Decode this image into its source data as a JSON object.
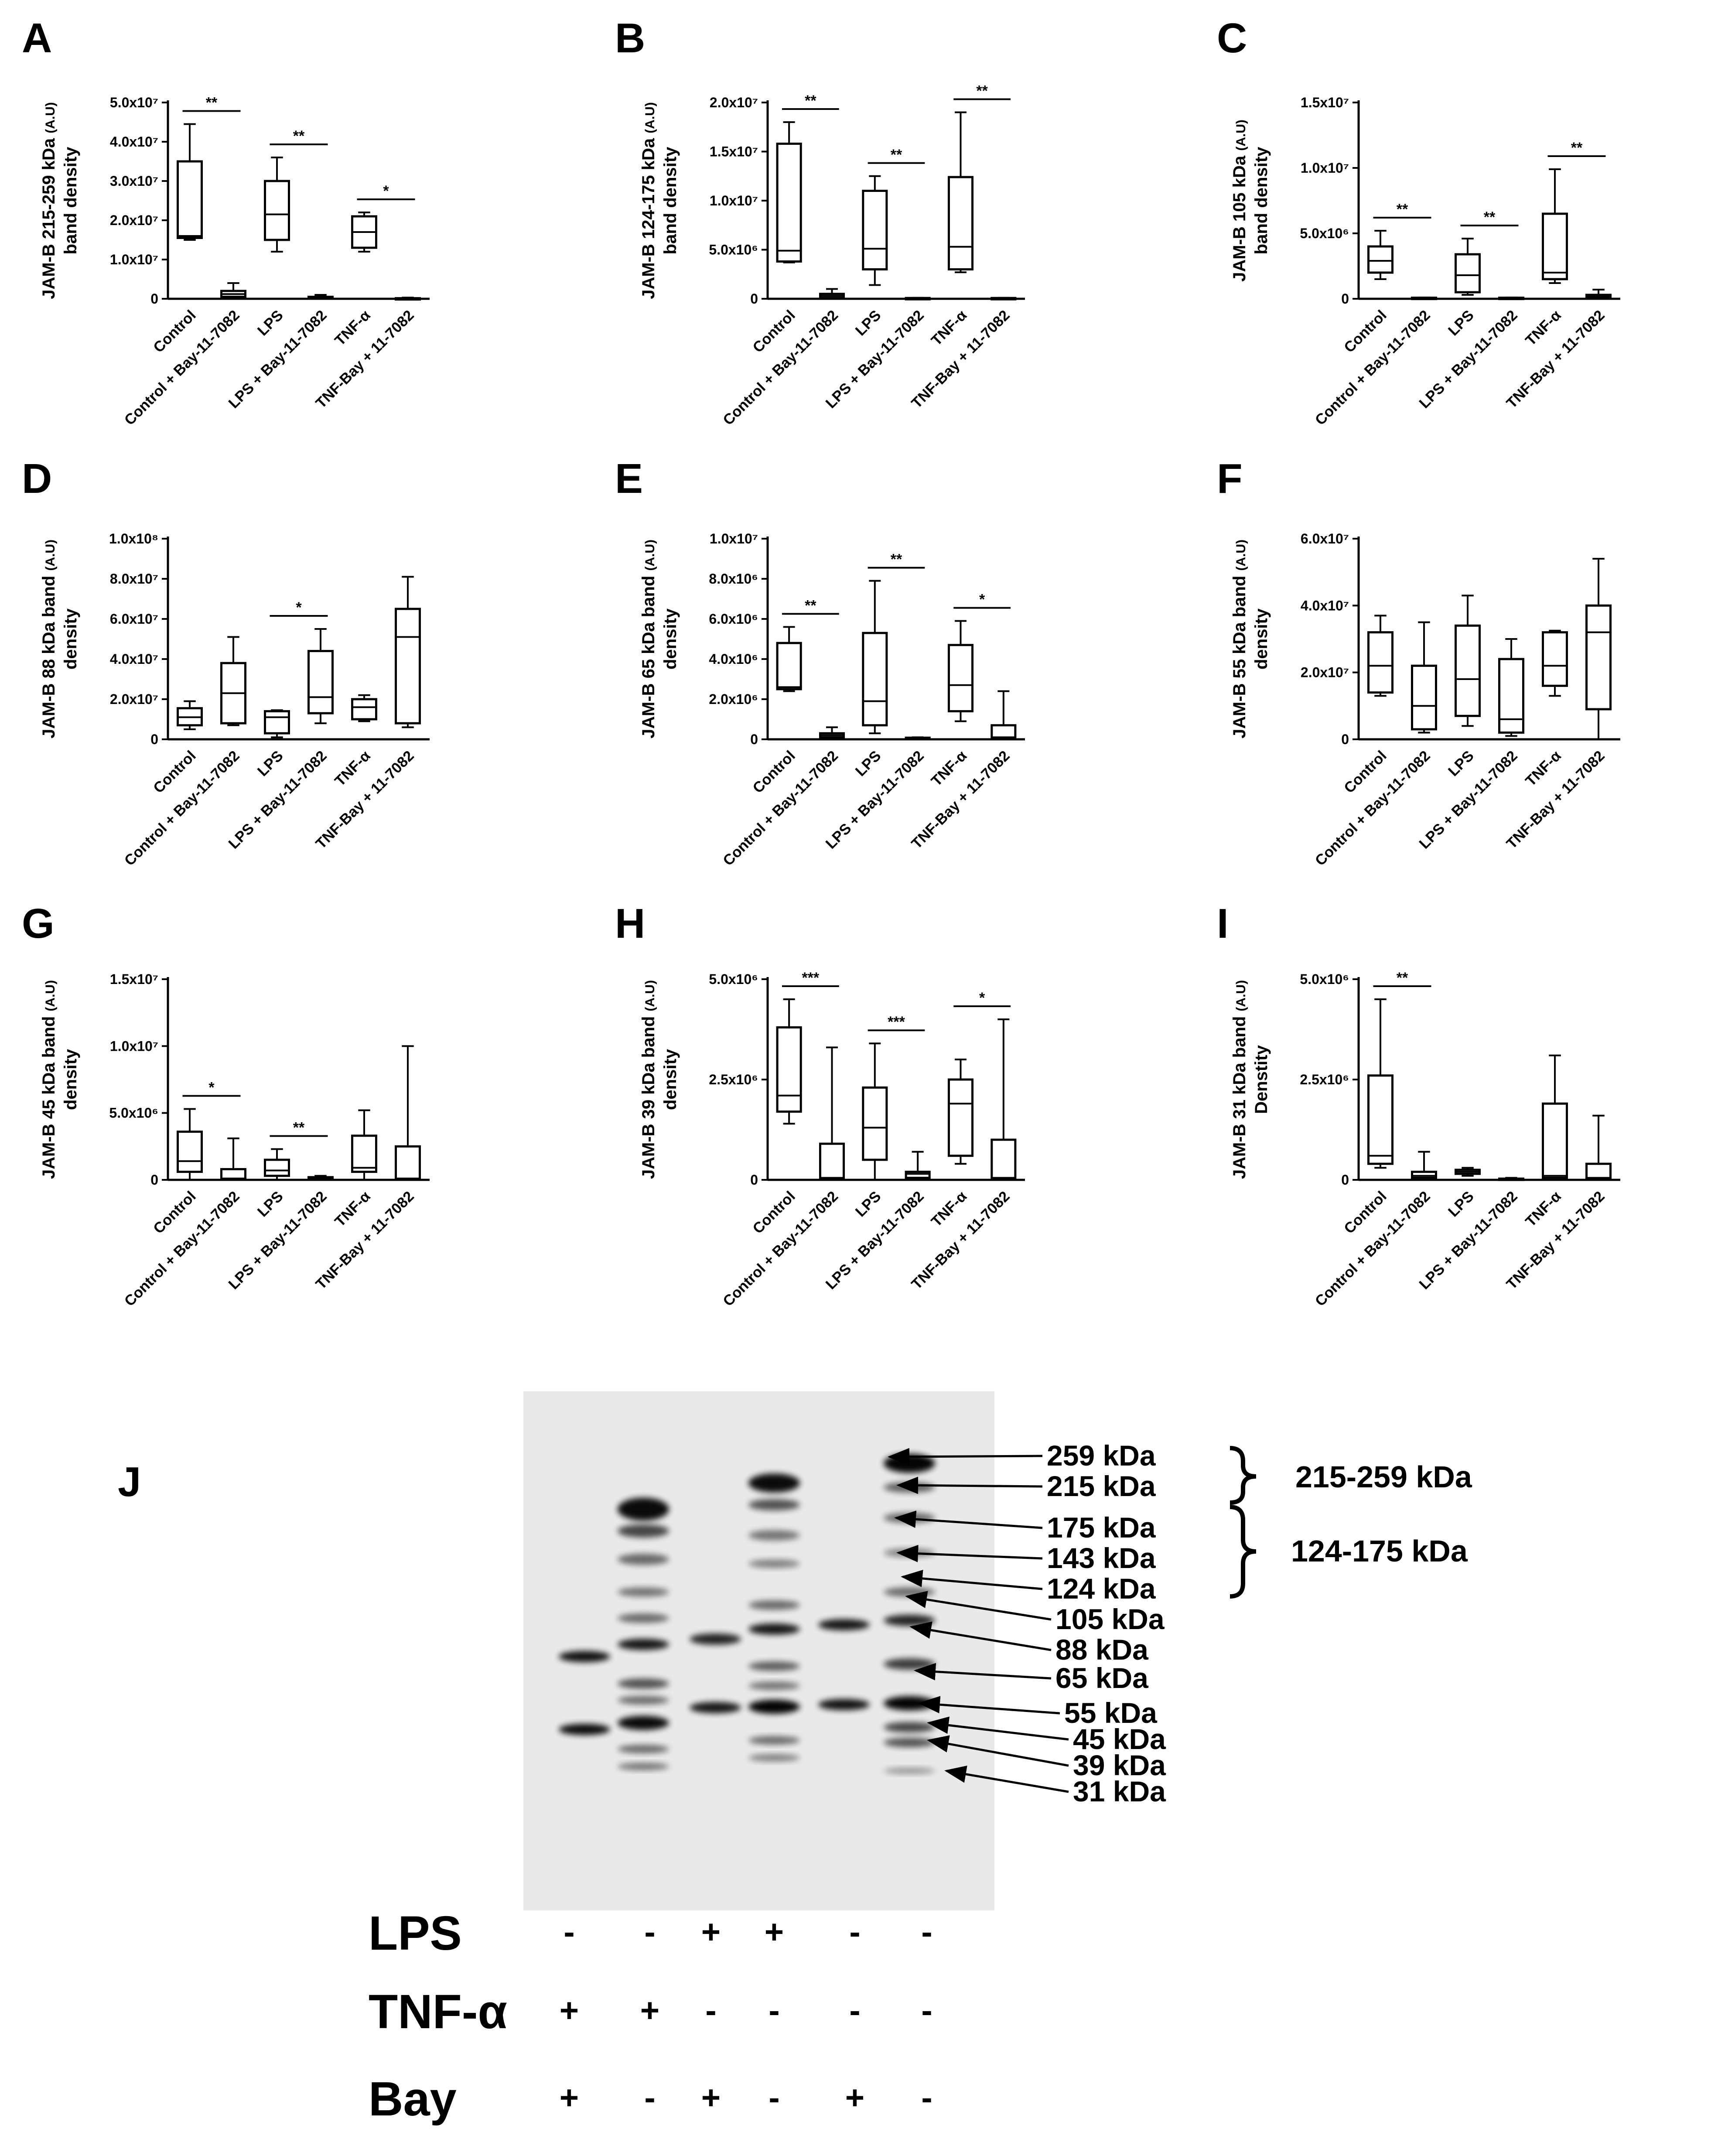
{
  "chart_data": [
    {
      "panel": "A",
      "type": "box",
      "ylabel_line1": "JAM-B 215-259 kDa",
      "ylabel_unit": "(A.U)",
      "ylabel_line2": "band density",
      "ylim": [
        0,
        50000000
      ],
      "yticks": [
        {
          "v": 0,
          "t": "0"
        },
        {
          "v": 10000000,
          "t": "1.0x10⁷"
        },
        {
          "v": 20000000,
          "t": "2.0x10⁷"
        },
        {
          "v": 30000000,
          "t": "3.0x10⁷"
        },
        {
          "v": 40000000,
          "t": "4.0x10⁷"
        },
        {
          "v": 50000000,
          "t": "5.0x10⁷"
        }
      ],
      "categories": [
        "Control",
        "Control + Bay-11-7082",
        "LPS",
        "LPS + Bay-11-7082",
        "TNF-α",
        "TNF-Bay + 11-7082"
      ],
      "boxes": [
        {
          "min": 15000000,
          "q1": 15500000,
          "median": 16000000,
          "q3": 35000000,
          "max": 44500000
        },
        {
          "min": 0,
          "q1": 500000,
          "median": 1200000,
          "q3": 2000000,
          "max": 4000000
        },
        {
          "min": 12000000,
          "q1": 15000000,
          "median": 21500000,
          "q3": 30000000,
          "max": 36000000
        },
        {
          "min": 0,
          "q1": 100000,
          "median": 300000,
          "q3": 500000,
          "max": 1000000
        },
        {
          "min": 12000000,
          "q1": 13000000,
          "median": 17000000,
          "q3": 21000000,
          "max": 22000000
        },
        {
          "min": 0,
          "q1": 50000,
          "median": 100000,
          "q3": 150000,
          "max": 300000
        }
      ],
      "significance": [
        {
          "a": 0,
          "b": 1,
          "label": "**"
        },
        {
          "a": 2,
          "b": 3,
          "label": "**"
        },
        {
          "a": 4,
          "b": 5,
          "label": "*"
        }
      ]
    },
    {
      "panel": "B",
      "type": "box",
      "ylabel_line1": "JAM-B 124-175 kDa",
      "ylabel_unit": "(A.U)",
      "ylabel_line2": "band density",
      "ylim": [
        0,
        20000000
      ],
      "yticks": [
        {
          "v": 0,
          "t": "0"
        },
        {
          "v": 5000000,
          "t": "5.0x10⁶"
        },
        {
          "v": 10000000,
          "t": "1.0x10⁷"
        },
        {
          "v": 15000000,
          "t": "1.5x10⁷"
        },
        {
          "v": 20000000,
          "t": "2.0x10⁷"
        }
      ],
      "categories": [
        "Control",
        "Control + Bay-11-7082",
        "LPS",
        "LPS + Bay-11-7082",
        "TNF-α",
        "TNF-Bay + 11-7082"
      ],
      "boxes": [
        {
          "min": 3700000,
          "q1": 3800000,
          "median": 4900000,
          "q3": 15800000,
          "max": 18000000
        },
        {
          "min": 0,
          "q1": 100000,
          "median": 300000,
          "q3": 500000,
          "max": 1000000
        },
        {
          "min": 1400000,
          "q1": 3000000,
          "median": 5100000,
          "q3": 11000000,
          "max": 12500000
        },
        {
          "min": 0,
          "q1": 20000,
          "median": 50000,
          "q3": 80000,
          "max": 100000
        },
        {
          "min": 2700000,
          "q1": 3000000,
          "median": 5300000,
          "q3": 12400000,
          "max": 19000000
        },
        {
          "min": 0,
          "q1": 20000,
          "median": 50000,
          "q3": 80000,
          "max": 100000
        }
      ],
      "significance": [
        {
          "a": 0,
          "b": 1,
          "label": "**"
        },
        {
          "a": 2,
          "b": 3,
          "label": "**"
        },
        {
          "a": 4,
          "b": 5,
          "label": "**"
        }
      ]
    },
    {
      "panel": "C",
      "type": "box",
      "ylabel_line1": "JAM-B 105 kDa",
      "ylabel_unit": "(A.U)",
      "ylabel_line2": "band density",
      "ylim": [
        0,
        15000000
      ],
      "yticks": [
        {
          "v": 0,
          "t": "0"
        },
        {
          "v": 5000000,
          "t": "5.0x10⁶"
        },
        {
          "v": 10000000,
          "t": "1.0x10⁷"
        },
        {
          "v": 15000000,
          "t": "1.5x10⁷"
        }
      ],
      "categories": [
        "Control",
        "Control + Bay-11-7082",
        "LPS",
        "LPS + Bay-11-7082",
        "TNF-α",
        "TNF-Bay + 11-7082"
      ],
      "boxes": [
        {
          "min": 1500000,
          "q1": 2000000,
          "median": 2900000,
          "q3": 4000000,
          "max": 5200000
        },
        {
          "min": 0,
          "q1": 20000,
          "median": 50000,
          "q3": 80000,
          "max": 100000
        },
        {
          "min": 300000,
          "q1": 500000,
          "median": 1800000,
          "q3": 3400000,
          "max": 4600000
        },
        {
          "min": 0,
          "q1": 20000,
          "median": 50000,
          "q3": 80000,
          "max": 100000
        },
        {
          "min": 1200000,
          "q1": 1500000,
          "median": 2000000,
          "q3": 6500000,
          "max": 9900000
        },
        {
          "min": 0,
          "q1": 100000,
          "median": 200000,
          "q3": 300000,
          "max": 700000
        }
      ],
      "significance": [
        {
          "a": 0,
          "b": 1,
          "label": "**"
        },
        {
          "a": 2,
          "b": 3,
          "label": "**"
        },
        {
          "a": 4,
          "b": 5,
          "label": "**"
        }
      ]
    },
    {
      "panel": "D",
      "type": "box",
      "ylabel_line1": "JAM-B 88 kDa band",
      "ylabel_unit": "(A.U)",
      "ylabel_line2": "density",
      "ylim": [
        0,
        100000000
      ],
      "yticks": [
        {
          "v": 0,
          "t": "0"
        },
        {
          "v": 20000000,
          "t": "2.0x10⁷"
        },
        {
          "v": 40000000,
          "t": "4.0x10⁷"
        },
        {
          "v": 60000000,
          "t": "6.0x10⁷"
        },
        {
          "v": 80000000,
          "t": "8.0x10⁷"
        },
        {
          "v": 100000000,
          "t": "1.0x10⁸"
        }
      ],
      "categories": [
        "Control",
        "Control + Bay-11-7082",
        "LPS",
        "LPS + Bay-11-7082",
        "TNF-α",
        "TNF-Bay + 11-7082"
      ],
      "boxes": [
        {
          "min": 5000000,
          "q1": 7000000,
          "median": 11000000,
          "q3": 15500000,
          "max": 19000000
        },
        {
          "min": 7000000,
          "q1": 8000000,
          "median": 23000000,
          "q3": 38000000,
          "max": 51000000
        },
        {
          "min": 1000000,
          "q1": 3000000,
          "median": 11000000,
          "q3": 14000000,
          "max": 14500000
        },
        {
          "min": 8000000,
          "q1": 13000000,
          "median": 21000000,
          "q3": 44000000,
          "max": 55000000
        },
        {
          "min": 9000000,
          "q1": 10000000,
          "median": 16000000,
          "q3": 20000000,
          "max": 22000000
        },
        {
          "min": 6000000,
          "q1": 8000000,
          "median": 51000000,
          "q3": 65000000,
          "max": 81000000
        }
      ],
      "significance": [
        {
          "a": 2,
          "b": 3,
          "label": "*"
        }
      ]
    },
    {
      "panel": "E",
      "type": "box",
      "ylabel_line1": "JAM-B 65 kDa band",
      "ylabel_unit": "(A.U)",
      "ylabel_line2": "density",
      "ylim": [
        0,
        10000000
      ],
      "yticks": [
        {
          "v": 0,
          "t": "0"
        },
        {
          "v": 2000000,
          "t": "2.0x10⁶"
        },
        {
          "v": 4000000,
          "t": "4.0x10⁶"
        },
        {
          "v": 6000000,
          "t": "6.0x10⁶"
        },
        {
          "v": 8000000,
          "t": "8.0x10⁶"
        },
        {
          "v": 10000000,
          "t": "1.0x10⁷"
        }
      ],
      "categories": [
        "Control",
        "Control + Bay-11-7082",
        "LPS",
        "LPS + Bay-11-7082",
        "TNF-α",
        "TNF-Bay + 11-7082"
      ],
      "boxes": [
        {
          "min": 2400000,
          "q1": 2500000,
          "median": 2600000,
          "q3": 4800000,
          "max": 5600000
        },
        {
          "min": 0,
          "q1": 100000,
          "median": 200000,
          "q3": 300000,
          "max": 600000
        },
        {
          "min": 300000,
          "q1": 700000,
          "median": 1900000,
          "q3": 5300000,
          "max": 7900000
        },
        {
          "min": 0,
          "q1": 20000,
          "median": 50000,
          "q3": 80000,
          "max": 100000
        },
        {
          "min": 900000,
          "q1": 1400000,
          "median": 2700000,
          "q3": 4700000,
          "max": 5900000
        },
        {
          "min": 0,
          "q1": 50000,
          "median": 100000,
          "q3": 700000,
          "max": 2400000
        }
      ],
      "significance": [
        {
          "a": 0,
          "b": 1,
          "label": "**"
        },
        {
          "a": 2,
          "b": 3,
          "label": "**"
        },
        {
          "a": 4,
          "b": 5,
          "label": "*"
        }
      ]
    },
    {
      "panel": "F",
      "type": "box",
      "ylabel_line1": "JAM-B 55 kDa band",
      "ylabel_unit": "(A.U)",
      "ylabel_line2": "density",
      "ylim": [
        0,
        60000000
      ],
      "yticks": [
        {
          "v": 0,
          "t": "0"
        },
        {
          "v": 20000000,
          "t": "2.0x10⁷"
        },
        {
          "v": 40000000,
          "t": "4.0x10⁷"
        },
        {
          "v": 60000000,
          "t": "6.0x10⁷"
        }
      ],
      "categories": [
        "Control",
        "Control + Bay-11-7082",
        "LPS",
        "LPS + Bay-11-7082",
        "TNF-α",
        "TNF-Bay + 11-7082"
      ],
      "boxes": [
        {
          "min": 13000000,
          "q1": 14000000,
          "median": 22000000,
          "q3": 32000000,
          "max": 37000000
        },
        {
          "min": 2000000,
          "q1": 3000000,
          "median": 10000000,
          "q3": 22000000,
          "max": 35000000
        },
        {
          "min": 4000000,
          "q1": 7000000,
          "median": 18000000,
          "q3": 34000000,
          "max": 43000000
        },
        {
          "min": 1000000,
          "q1": 2000000,
          "median": 6000000,
          "q3": 24000000,
          "max": 30000000
        },
        {
          "min": 13000000,
          "q1": 16000000,
          "median": 22000000,
          "q3": 32000000,
          "max": 32500000
        },
        {
          "min": 0,
          "q1": 9000000,
          "median": 32000000,
          "q3": 40000000,
          "max": 54000000
        }
      ],
      "significance": []
    },
    {
      "panel": "G",
      "type": "box",
      "ylabel_line1": "JAM-B 45 kDa band",
      "ylabel_unit": "(A.U)",
      "ylabel_line2": "density",
      "ylim": [
        0,
        15000000
      ],
      "yticks": [
        {
          "v": 0,
          "t": "0"
        },
        {
          "v": 5000000,
          "t": "5.0x10⁶"
        },
        {
          "v": 10000000,
          "t": "1.0x10⁷"
        },
        {
          "v": 15000000,
          "t": "1.5x10⁷"
        }
      ],
      "categories": [
        "Control",
        "Control + Bay-11-7082",
        "LPS",
        "LPS + Bay-11-7082",
        "TNF-α",
        "TNF-Bay + 11-7082"
      ],
      "boxes": [
        {
          "min": 0,
          "q1": 600000,
          "median": 1400000,
          "q3": 3600000,
          "max": 5300000
        },
        {
          "min": 0,
          "q1": 50000,
          "median": 100000,
          "q3": 800000,
          "max": 3100000
        },
        {
          "min": 0,
          "q1": 300000,
          "median": 700000,
          "q3": 1500000,
          "max": 2300000
        },
        {
          "min": 0,
          "q1": 50000,
          "median": 100000,
          "q3": 200000,
          "max": 300000
        },
        {
          "min": 0,
          "q1": 600000,
          "median": 900000,
          "q3": 3300000,
          "max": 5200000
        },
        {
          "min": 0,
          "q1": 50000,
          "median": 100000,
          "q3": 2500000,
          "max": 10000000
        }
      ],
      "significance": [
        {
          "a": 0,
          "b": 1,
          "label": "*"
        },
        {
          "a": 2,
          "b": 3,
          "label": "**"
        }
      ]
    },
    {
      "panel": "H",
      "type": "box",
      "ylabel_line1": "JAM-B 39 kDa band",
      "ylabel_unit": "(A.U)",
      "ylabel_line2": "density",
      "ylim": [
        0,
        5000000
      ],
      "yticks": [
        {
          "v": 0,
          "t": "0"
        },
        {
          "v": 2500000,
          "t": "2.5x10⁶"
        },
        {
          "v": 5000000,
          "t": "5.0x10⁶"
        }
      ],
      "categories": [
        "Control",
        "Control + Bay-11-7082",
        "LPS",
        "LPS + Bay-11-7082",
        "TNF-α",
        "TNF-Bay + 11-7082"
      ],
      "boxes": [
        {
          "min": 1400000,
          "q1": 1700000,
          "median": 2100000,
          "q3": 3800000,
          "max": 4500000
        },
        {
          "min": 0,
          "q1": 20000,
          "median": 50000,
          "q3": 900000,
          "max": 3300000
        },
        {
          "min": 0,
          "q1": 500000,
          "median": 1300000,
          "q3": 2300000,
          "max": 3400000
        },
        {
          "min": 0,
          "q1": 50000,
          "median": 150000,
          "q3": 200000,
          "max": 700000
        },
        {
          "min": 400000,
          "q1": 600000,
          "median": 1900000,
          "q3": 2500000,
          "max": 3000000
        },
        {
          "min": 0,
          "q1": 20000,
          "median": 50000,
          "q3": 1000000,
          "max": 4000000
        }
      ],
      "significance": [
        {
          "a": 0,
          "b": 1,
          "label": "***"
        },
        {
          "a": 2,
          "b": 3,
          "label": "***"
        },
        {
          "a": 4,
          "b": 5,
          "label": "*"
        }
      ]
    },
    {
      "panel": "I",
      "type": "box",
      "ylabel_line1": "JAM-B 31 kDa band",
      "ylabel_unit": "(A.U)",
      "ylabel_line2": "Denstity",
      "ylim": [
        0,
        5000000
      ],
      "yticks": [
        {
          "v": 0,
          "t": "0"
        },
        {
          "v": 2500000,
          "t": "2.5x10⁶"
        },
        {
          "v": 5000000,
          "t": "5.0x10⁶"
        }
      ],
      "categories": [
        "Control",
        "Control + Bay-11-7082",
        "LPS",
        "LPS + Bay-11-7082",
        "TNF-α",
        "TNF-Bay + 11-7082"
      ],
      "boxes": [
        {
          "min": 300000,
          "q1": 400000,
          "median": 600000,
          "q3": 2600000,
          "max": 4500000
        },
        {
          "min": 0,
          "q1": 50000,
          "median": 100000,
          "q3": 200000,
          "max": 700000
        },
        {
          "min": 100000,
          "q1": 150000,
          "median": 200000,
          "q3": 250000,
          "max": 300000
        },
        {
          "min": 0,
          "q1": 10000,
          "median": 20000,
          "q3": 30000,
          "max": 50000
        },
        {
          "min": 0,
          "q1": 50000,
          "median": 100000,
          "q3": 1900000,
          "max": 3100000
        },
        {
          "min": 0,
          "q1": 20000,
          "median": 50000,
          "q3": 400000,
          "max": 1600000
        }
      ],
      "significance": [
        {
          "a": 0,
          "b": 1,
          "label": "**"
        }
      ]
    }
  ],
  "blot": {
    "panel": "J",
    "markers": [
      "259 kDa",
      "215 kDa",
      "175 kDa",
      "143 kDa",
      "124 kDa",
      "105 kDa",
      "88 kDa",
      "65 kDa",
      "55 kDa",
      "45 kDa",
      "39 kDa",
      "31 kDa"
    ],
    "ranges": [
      "215-259 kDa",
      "124-175 kDa"
    ],
    "rows": [
      {
        "label": "LPS",
        "signs": [
          "-",
          "-",
          "+",
          "+",
          "-",
          "-"
        ]
      },
      {
        "label": "TNF-α",
        "signs": [
          "+",
          "+",
          "-",
          "-",
          "-",
          "-"
        ]
      },
      {
        "label": "Bay",
        "signs": [
          "+",
          "-",
          "+",
          "-",
          "+",
          "-"
        ]
      }
    ]
  }
}
